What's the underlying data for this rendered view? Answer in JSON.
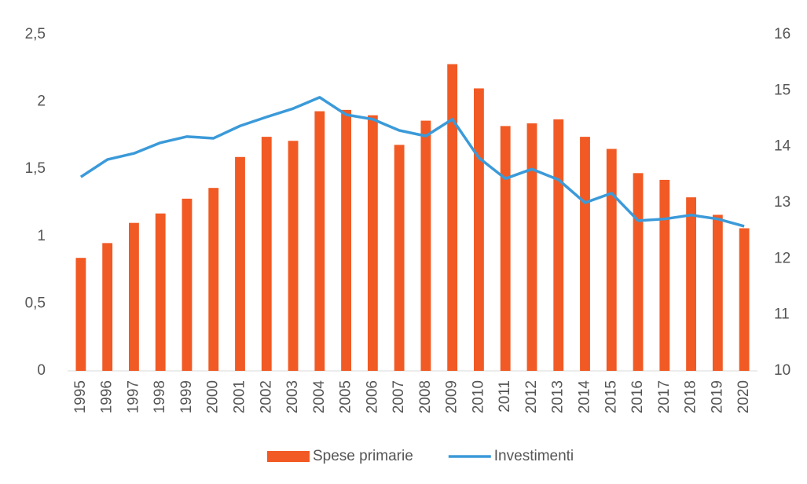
{
  "chart_data": {
    "type": "bar-line",
    "categories": [
      "1995",
      "1996",
      "1997",
      "1998",
      "1999",
      "2000",
      "2001",
      "2002",
      "2003",
      "2004",
      "2005",
      "2006",
      "2007",
      "2008",
      "2009",
      "2010",
      "2011",
      "2012",
      "2013",
      "2014",
      "2015",
      "2016",
      "2017",
      "2018",
      "2019",
      "2020"
    ],
    "series": [
      {
        "name": "Spese primarie",
        "type": "bar",
        "color": "#f15a24",
        "values": [
          0.84,
          0.95,
          1.1,
          1.17,
          1.28,
          1.36,
          1.59,
          1.74,
          1.71,
          1.93,
          1.94,
          1.9,
          1.68,
          1.86,
          2.28,
          2.1,
          1.82,
          1.84,
          1.87,
          1.74,
          1.65,
          1.47,
          1.42,
          1.29,
          1.16,
          1.06
        ]
      },
      {
        "name": "Investimenti",
        "type": "line",
        "axis": "y2",
        "color": "#3b9ad9",
        "values": [
          13.46,
          13.77,
          13.88,
          14.07,
          14.18,
          14.15,
          14.37,
          14.53,
          14.68,
          14.88,
          14.57,
          14.49,
          14.29,
          14.19,
          14.49,
          13.8,
          13.43,
          13.6,
          13.41,
          13.0,
          13.17,
          12.68,
          12.71,
          12.78,
          12.71,
          12.58
        ]
      }
    ],
    "ylim": [
      0,
      2.5
    ],
    "yticks": [
      0,
      {
        "value": 0.5,
        "label": "0,5"
      },
      1,
      {
        "value": 1.5,
        "label": "1,5"
      },
      2,
      {
        "value": 2.5,
        "label": "2,5"
      }
    ],
    "y2lim": [
      10,
      16
    ],
    "y2ticks": [
      10,
      11,
      12,
      13,
      14,
      15,
      16
    ],
    "grid": false,
    "legend": "bottom"
  }
}
